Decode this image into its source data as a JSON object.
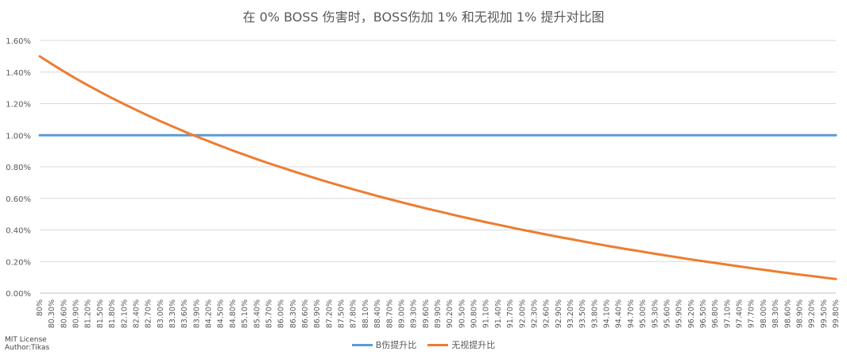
{
  "chart_data": {
    "type": "line",
    "title": "在 0% BOSS 伤害时，BOSS伤加 1% 和无视加 1% 提升对比图",
    "xlabel": "",
    "ylabel": "",
    "x_start": 80.0,
    "x_end": 99.8,
    "x_step": 0.3,
    "x_labels": [
      "80%",
      "80.30%",
      "80.60%",
      "80.90%",
      "81.20%",
      "81.50%",
      "81.80%",
      "82.10%",
      "82.40%",
      "82.70%",
      "83.00%",
      "83.30%",
      "83.60%",
      "83.90%",
      "84.20%",
      "84.50%",
      "84.80%",
      "85.10%",
      "85.40%",
      "85.70%",
      "86.00%",
      "86.30%",
      "86.60%",
      "86.90%",
      "87.20%",
      "87.50%",
      "87.80%",
      "88.10%",
      "88.40%",
      "88.70%",
      "89.00%",
      "89.30%",
      "89.60%",
      "89.90%",
      "90.20%",
      "90.50%",
      "90.80%",
      "91.10%",
      "91.40%",
      "91.70%",
      "92.00%",
      "92.30%",
      "92.60%",
      "92.90%",
      "93.20%",
      "93.50%",
      "93.80%",
      "94.10%",
      "94.40%",
      "94.70%",
      "95.00%",
      "95.30%",
      "95.60%",
      "95.90%",
      "96.20%",
      "96.50%",
      "96.80%",
      "97.10%",
      "97.40%",
      "97.70%",
      "98.00%",
      "98.30%",
      "98.60%",
      "98.90%",
      "99.20%",
      "99.50%",
      "99.80%"
    ],
    "y_ticks": [
      "0.00%",
      "0.20%",
      "0.40%",
      "0.60%",
      "0.80%",
      "1.00%",
      "1.20%",
      "1.40%",
      "1.60%"
    ],
    "ylim": [
      0,
      1.6
    ],
    "series": [
      {
        "name": "B伤提升比",
        "color": "#5B9BD5",
        "values": [
          1,
          1,
          1,
          1,
          1,
          1,
          1,
          1,
          1,
          1,
          1,
          1,
          1,
          1,
          1,
          1,
          1,
          1,
          1,
          1,
          1,
          1,
          1,
          1,
          1,
          1,
          1,
          1,
          1,
          1,
          1,
          1,
          1,
          1,
          1,
          1,
          1,
          1,
          1,
          1,
          1,
          1,
          1,
          1,
          1,
          1,
          1,
          1,
          1,
          1,
          1,
          1,
          1,
          1,
          1,
          1,
          1,
          1,
          1,
          1,
          1,
          1,
          1,
          1,
          1,
          1,
          1
        ]
      },
      {
        "name": "无视提升比",
        "color": "#ED7D31",
        "values": [
          1.5,
          1.451,
          1.404,
          1.359,
          1.316,
          1.275,
          1.235,
          1.197,
          1.16,
          1.124,
          1.089,
          1.056,
          1.023,
          0.992,
          0.962,
          0.932,
          0.903,
          0.876,
          0.848,
          0.822,
          0.797,
          0.772,
          0.748,
          0.724,
          0.701,
          0.679,
          0.657,
          0.636,
          0.615,
          0.595,
          0.575,
          0.556,
          0.537,
          0.519,
          0.501,
          0.483,
          0.466,
          0.449,
          0.433,
          0.417,
          0.401,
          0.386,
          0.371,
          0.356,
          0.342,
          0.328,
          0.314,
          0.3,
          0.287,
          0.274,
          0.262,
          0.249,
          0.237,
          0.225,
          0.213,
          0.202,
          0.191,
          0.18,
          0.169,
          0.158,
          0.148,
          0.137,
          0.127,
          0.117,
          0.108,
          0.098,
          0.089
        ]
      }
    ],
    "grid": true,
    "legend_position": "bottom"
  },
  "credits": {
    "license": "MIT License",
    "author": "Author:Tikas"
  }
}
